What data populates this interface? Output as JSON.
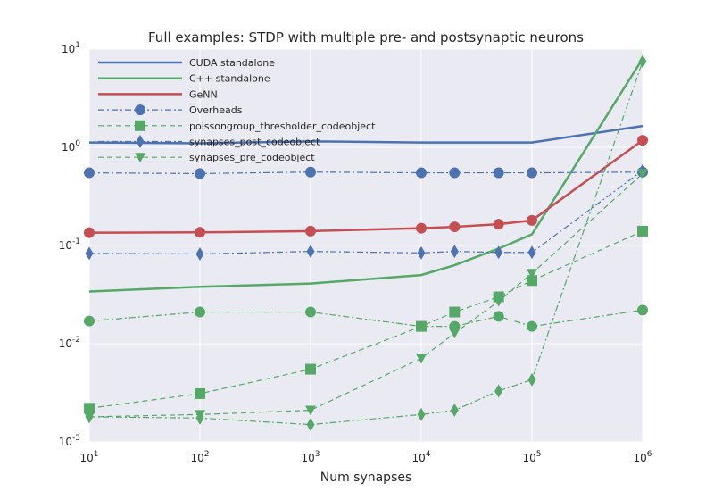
{
  "chart_data": {
    "type": "line",
    "title": "Full examples: STDP with multiple pre- and postsynaptic neurons",
    "xlabel": "Num synapses",
    "ylabel": "",
    "xscale": "log",
    "yscale": "log",
    "xlim": [
      10,
      1000000
    ],
    "ylim": [
      0.001,
      10
    ],
    "x_ticks": [
      {
        "base": "10",
        "exp": "1"
      },
      {
        "base": "10",
        "exp": "2"
      },
      {
        "base": "10",
        "exp": "3"
      },
      {
        "base": "10",
        "exp": "4"
      },
      {
        "base": "10",
        "exp": "5"
      },
      {
        "base": "10",
        "exp": "6"
      }
    ],
    "y_ticks": [
      {
        "base": "10",
        "exp": "-3"
      },
      {
        "base": "10",
        "exp": "-2"
      },
      {
        "base": "10",
        "exp": "-1"
      },
      {
        "base": "10",
        "exp": "0"
      },
      {
        "base": "10",
        "exp": "1"
      }
    ],
    "grid": true,
    "legend_position": "top-left",
    "colors": {
      "blue": "#4c72b0",
      "green": "#55a868",
      "red": "#c44e52",
      "background": "#eaeaf2",
      "grid": "#ffffff"
    },
    "series": [
      {
        "name": "CUDA standalone",
        "color": "#4c72b0",
        "style": "solid",
        "marker": "none",
        "x": [
          10,
          100,
          1000,
          10000,
          20000,
          50000,
          100000,
          1000000
        ],
        "y": [
          1.12,
          1.1,
          1.15,
          1.12,
          1.12,
          1.12,
          1.12,
          1.65
        ]
      },
      {
        "name": "C++ standalone",
        "color": "#55a868",
        "style": "solid",
        "marker": "none",
        "x": [
          10,
          100,
          1000,
          10000,
          20000,
          50000,
          100000,
          1000000
        ],
        "y": [
          0.034,
          0.038,
          0.041,
          0.05,
          0.063,
          0.093,
          0.13,
          8.0
        ]
      },
      {
        "name": "GeNN",
        "color": "#c44e52",
        "style": "solid",
        "marker": "circle",
        "x": [
          10,
          100,
          1000,
          10000,
          20000,
          50000,
          100000,
          1000000
        ],
        "y": [
          0.135,
          0.136,
          0.14,
          0.15,
          0.155,
          0.165,
          0.18,
          1.18
        ]
      },
      {
        "name": "Overheads",
        "color": "#4c72b0",
        "style": "dashdot",
        "marker": "circle",
        "x": [
          10,
          100,
          1000,
          10000,
          20000,
          50000,
          100000,
          1000000
        ],
        "y": [
          0.55,
          0.54,
          0.56,
          0.55,
          0.55,
          0.55,
          0.55,
          0.56
        ]
      },
      {
        "name": "poissongroup_thresholder_codeobject",
        "color": "#55a868",
        "style": "dashed",
        "marker": "square",
        "x": [
          10,
          100,
          1000,
          10000,
          20000,
          50000,
          100000,
          1000000
        ],
        "y": [
          0.0022,
          0.0031,
          0.0055,
          0.015,
          0.021,
          0.03,
          0.044,
          0.14
        ]
      },
      {
        "name": "synapses_post_codeobject",
        "color": "#4c72b0",
        "style": "dashdot",
        "marker": "diamond",
        "x": [
          10,
          100,
          1000,
          10000,
          20000,
          50000,
          100000,
          1000000
        ],
        "y": [
          0.083,
          0.082,
          0.087,
          0.084,
          0.087,
          0.085,
          0.085,
          0.58
        ]
      },
      {
        "name": "synapses_pre_codeobject",
        "color": "#55a868",
        "style": "dashed",
        "marker": "triangle",
        "x": [
          10,
          100,
          1000,
          10000,
          20000,
          50000,
          100000,
          1000000
        ],
        "y": [
          0.0018,
          0.0019,
          0.0021,
          0.0071,
          0.0128,
          0.027,
          0.052,
          0.54
        ]
      },
      {
        "name": "",
        "color": "#55a868",
        "style": "dashdot",
        "marker": "circle",
        "x": [
          10,
          100,
          1000,
          10000,
          20000,
          50000,
          100000,
          1000000
        ],
        "y": [
          0.017,
          0.021,
          0.021,
          0.015,
          0.015,
          0.019,
          0.015,
          0.022
        ]
      },
      {
        "name": "",
        "color": "#55a868",
        "style": "dashdot",
        "marker": "diamond",
        "x": [
          10,
          100,
          1000,
          10000,
          20000,
          50000,
          100000,
          1000000
        ],
        "y": [
          0.0018,
          0.00175,
          0.0015,
          0.0019,
          0.0021,
          0.0033,
          0.0043,
          7.5
        ]
      }
    ]
  }
}
